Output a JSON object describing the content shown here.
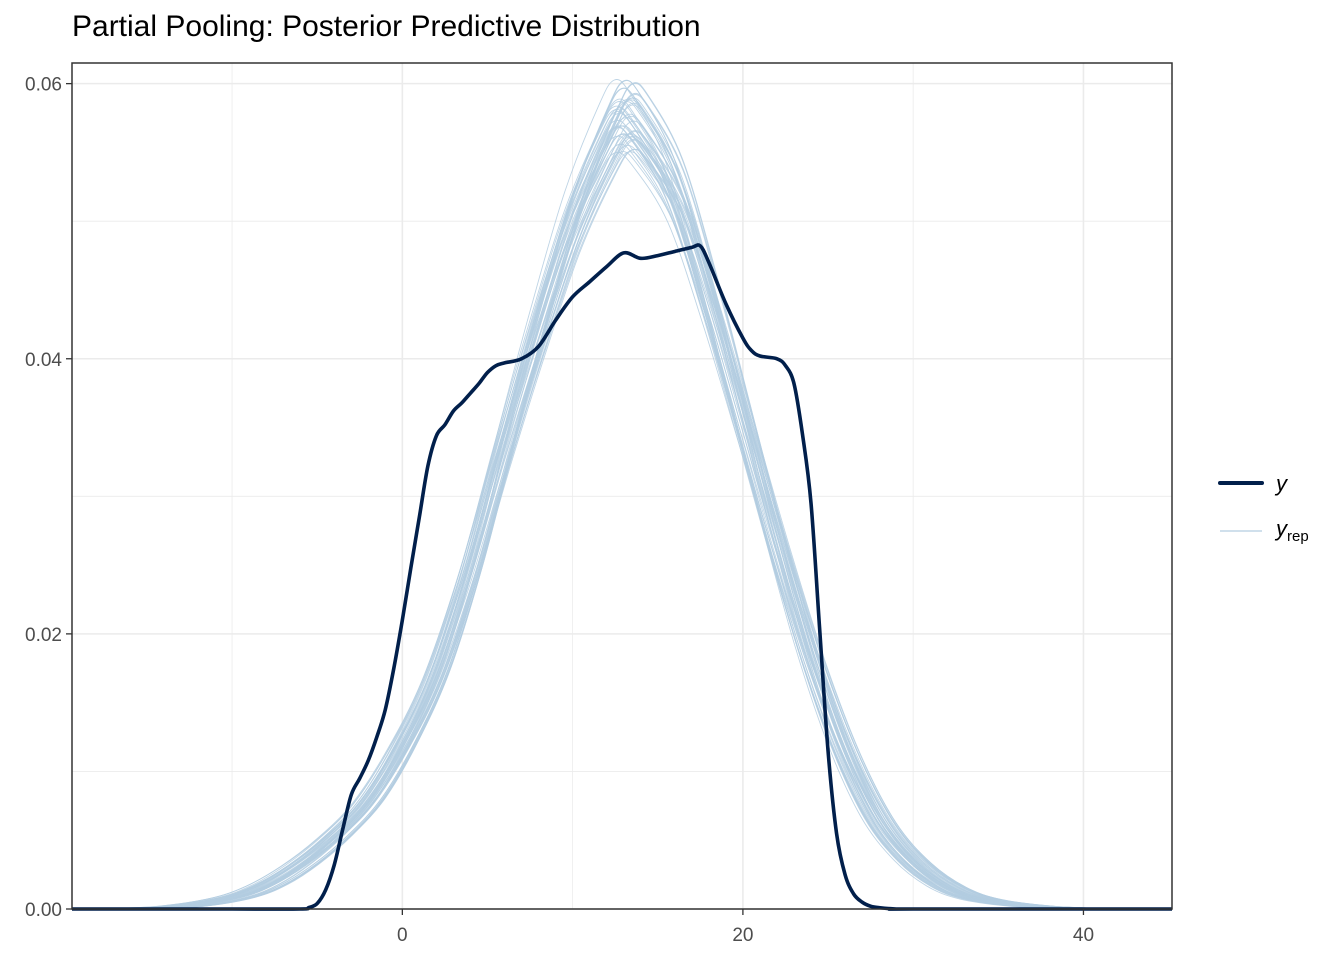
{
  "chart_data": {
    "type": "line",
    "title": "Partial Pooling: Posterior Predictive Distribution",
    "xlabel": "",
    "ylabel": "",
    "xlim": [
      -19.4,
      45.2
    ],
    "ylim": [
      0,
      0.0615
    ],
    "x_ticks": [
      0,
      20,
      40
    ],
    "x_tick_labels": [
      "0",
      "20",
      "40"
    ],
    "y_ticks": [
      0,
      0.02,
      0.04,
      0.06
    ],
    "y_tick_labels": [
      "0.00",
      "0.02",
      "0.04",
      "0.06"
    ],
    "grid": true,
    "legend_position": "right",
    "colors": {
      "y": "#011f4b",
      "y_rep": "#b3cde0",
      "grid": "#ebebeb",
      "axis": "#333333"
    },
    "legend": [
      {
        "key": "y",
        "label": "y",
        "subscript": ""
      },
      {
        "key": "y_rep",
        "label": "y",
        "subscript": "rep"
      }
    ],
    "series": [
      {
        "key": "y",
        "x": [
          -19.4,
          -10,
          -6,
          -5.5,
          -5,
          -4.5,
          -4,
          -3.5,
          -3,
          -2.5,
          -2,
          -1.5,
          -1,
          -0.5,
          0,
          0.5,
          1,
          1.5,
          2,
          2.5,
          3,
          3.5,
          4,
          4.5,
          5,
          5.5,
          6,
          7,
          8,
          9,
          10,
          11,
          12,
          13,
          14,
          15,
          16,
          17,
          17.5,
          18,
          19,
          20,
          20.5,
          21,
          22,
          22.5,
          23,
          23.5,
          24,
          24.5,
          25,
          25.5,
          26,
          26.5,
          27,
          27.5,
          28,
          29,
          30,
          45.2
        ],
        "values": [
          0,
          0,
          0,
          0.0001,
          0.0004,
          0.0014,
          0.0032,
          0.0058,
          0.0083,
          0.0095,
          0.0108,
          0.0125,
          0.0145,
          0.0175,
          0.021,
          0.0248,
          0.0285,
          0.0322,
          0.0344,
          0.0352,
          0.0362,
          0.0368,
          0.0375,
          0.0382,
          0.039,
          0.0395,
          0.0397,
          0.04,
          0.0409,
          0.0428,
          0.0445,
          0.0456,
          0.0467,
          0.0477,
          0.0473,
          0.0475,
          0.0478,
          0.0481,
          0.0482,
          0.047,
          0.044,
          0.0415,
          0.0406,
          0.0402,
          0.04,
          0.0395,
          0.0382,
          0.0345,
          0.0295,
          0.0205,
          0.0115,
          0.0055,
          0.0025,
          0.0011,
          0.0005,
          0.0002,
          0.0001,
          0,
          0,
          0
        ]
      },
      {
        "key": "y_rep",
        "x": [
          -19.4,
          -16,
          -13,
          -10,
          -8,
          -6,
          -4,
          -2,
          0,
          2,
          4,
          6,
          8,
          10,
          12,
          13,
          14,
          16,
          18,
          20,
          22,
          24,
          26,
          28,
          30,
          32,
          34,
          37,
          40,
          45.2
        ],
        "values": [
          0,
          3e-05,
          0.0002,
          0.0008,
          0.0017,
          0.0032,
          0.0052,
          0.0078,
          0.0118,
          0.017,
          0.0245,
          0.0335,
          0.042,
          0.0498,
          0.0556,
          0.0575,
          0.0565,
          0.0522,
          0.0444,
          0.0355,
          0.0265,
          0.0182,
          0.0114,
          0.0064,
          0.0034,
          0.0016,
          0.0007,
          0.0002,
          4e-05,
          0
        ]
      }
    ]
  }
}
